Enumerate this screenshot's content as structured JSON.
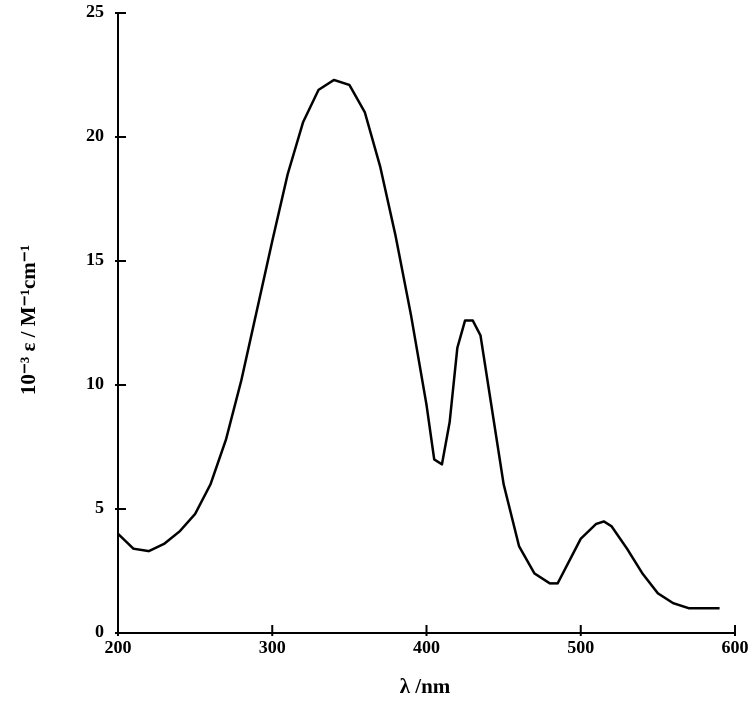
{
  "chart_data": {
    "type": "line",
    "x_label": "λ /nm",
    "y_label": "10⁻³ ε / M⁻¹cm⁻¹",
    "x": [
      200,
      210,
      220,
      230,
      240,
      250,
      260,
      270,
      280,
      290,
      300,
      310,
      320,
      330,
      340,
      350,
      360,
      370,
      380,
      390,
      400,
      405,
      410,
      415,
      420,
      425,
      430,
      435,
      440,
      450,
      460,
      470,
      480,
      485,
      490,
      500,
      510,
      515,
      520,
      530,
      540,
      550,
      560,
      570,
      580,
      590
    ],
    "values": [
      4.0,
      3.4,
      3.3,
      3.6,
      4.1,
      4.8,
      6.0,
      7.8,
      10.2,
      13.0,
      15.8,
      18.5,
      20.6,
      21.9,
      22.3,
      22.1,
      21.0,
      18.8,
      16.0,
      12.8,
      9.2,
      7.0,
      6.8,
      8.5,
      11.5,
      12.6,
      12.6,
      12.0,
      10.0,
      6.0,
      3.5,
      2.4,
      2.0,
      2.0,
      2.6,
      3.8,
      4.4,
      4.5,
      4.3,
      3.4,
      2.4,
      1.6,
      1.2,
      1.0,
      1.0,
      1.0
    ],
    "color": "#000000",
    "xlim": [
      200,
      600
    ],
    "xticks": [
      200,
      300,
      400,
      500,
      600
    ],
    "ylim": [
      0,
      25
    ],
    "yticks": [
      0,
      5,
      10,
      15,
      20,
      25
    ],
    "grid": false
  }
}
